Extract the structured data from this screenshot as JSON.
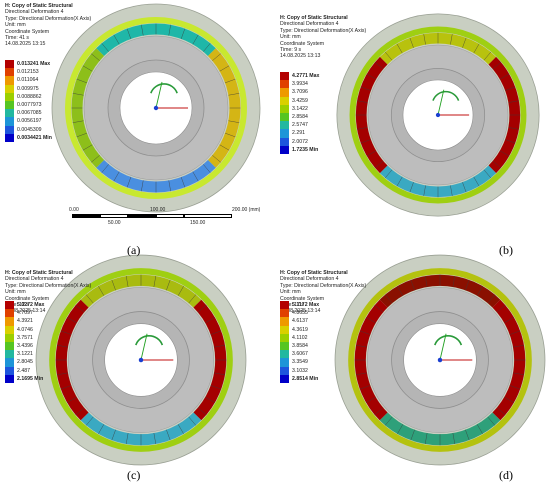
{
  "panels": [
    {
      "id": "a",
      "caption": "(a)",
      "header": [
        "H: Copy of Static Structural",
        "Directional Deformation 4",
        "Type: Directional Deformation(X Axis)",
        "Unit: mm",
        "Coordinate System",
        "Time: 41 s",
        "14.08.2025 13:15"
      ],
      "legend": [
        "0.013241 Max",
        "0.012153",
        "0.011064",
        "0.009975",
        "0.0088862",
        "0.0077973",
        "0.0067085",
        "0.0056197",
        "0.0045309",
        "0.0034421 Min"
      ],
      "ring_colors": {
        "top": "#1fb7a8",
        "left": "#8dbf1a",
        "right": "#d4b515",
        "bottom": "#4a8fe0",
        "outer": "#c8e830"
      }
    },
    {
      "id": "b",
      "caption": "(b)",
      "header": [
        "H: Copy of Static Structural",
        "Directional Deformation 4",
        "Type: Directional Deformation(X Axis)",
        "Unit: mm",
        "Coordinate System",
        "Time: 9 s",
        "14.08.2025 13:13"
      ],
      "legend": [
        "4.2771 Max",
        "3.9934",
        "3.7096",
        "3.4259",
        "3.1422",
        "2.8584",
        "2.5747",
        "2.291",
        "2.0072",
        "1.7235 Min"
      ],
      "ring_colors": {
        "top": "#b8c20e",
        "left": "#a40000",
        "right": "#a40000",
        "bottom": "#3aa9c2",
        "outer": "#9fcf12"
      }
    },
    {
      "id": "c",
      "caption": "(c)",
      "header": [
        "H: Copy of Static Structural",
        "Directional Deformation 4",
        "Type: Directional Deformation(X Axis)",
        "Unit: mm",
        "Coordinate System",
        "Time: 12 s",
        "14.08.2025 13:14"
      ],
      "legend": [
        "5.0272 Max",
        "4.7097",
        "4.3921",
        "4.0746",
        "3.7571",
        "3.4396",
        "3.1221",
        "2.8045",
        "2.487",
        "2.1695 Min"
      ],
      "ring_colors": {
        "top": "#a9bb10",
        "left": "#a40000",
        "right": "#a40000",
        "bottom": "#3aa9c2",
        "outer": "#9fcf12"
      }
    },
    {
      "id": "d",
      "caption": "(d)",
      "header": [
        "H: Copy of Static Structural",
        "Directional Deformation 4",
        "Type: Directional Deformation(X Axis)",
        "Unit: mm",
        "Coordinate System",
        "Time: 17 s",
        "14.08.2025 13:14"
      ],
      "legend": [
        "5.1172 Max",
        "4.8655",
        "4.6137",
        "4.3619",
        "4.1102",
        "3.8584",
        "3.6067",
        "3.3549",
        "3.1032",
        "2.8514 Min"
      ],
      "ring_colors": {
        "top": "#8a1000",
        "left": "#a40000",
        "right": "#a40000",
        "bottom": "#2ea07a",
        "outer": "#b4c20f"
      }
    }
  ],
  "legend_colors": [
    "#b30000",
    "#e04000",
    "#ee9900",
    "#d9d000",
    "#9ccf00",
    "#55c522",
    "#22b8a0",
    "#1d95d8",
    "#1d55dd",
    "#0000c8"
  ],
  "scale_bar": {
    "top_labels": [
      "0.00",
      "100.00",
      "200.00 (mm)"
    ],
    "bottom_labels": [
      "50.00",
      "150.00"
    ]
  }
}
